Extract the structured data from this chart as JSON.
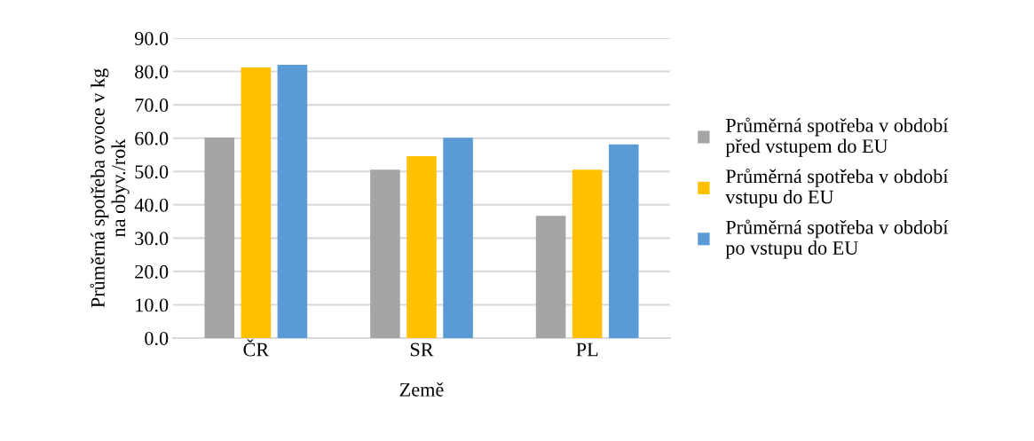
{
  "chart_data": {
    "type": "bar",
    "xlabel": "Země",
    "ylabel": "Průměrná spotřeba ovoce v kg\nna obyv./rok",
    "categories": [
      "ČR",
      "SR",
      "PL"
    ],
    "series": [
      {
        "name": "Průměrná spotřeba v období\npřed vstupem do EU",
        "color": "#a5a5a5",
        "values": [
          60.2,
          50.5,
          36.7
        ]
      },
      {
        "name": "Průměrná spotřeba v období\nvstupu do EU",
        "color": "#ffc000",
        "values": [
          81.2,
          54.6,
          50.5
        ]
      },
      {
        "name": "Průměrná spotřeba v období\npo vstupu do EU",
        "color": "#5b9bd5",
        "values": [
          82.0,
          60.1,
          58.1
        ]
      }
    ],
    "ylim": [
      0,
      90
    ],
    "yticks": [
      {
        "value": 0,
        "label": "0.0"
      },
      {
        "value": 10,
        "label": "10.0"
      },
      {
        "value": 20,
        "label": "20.0"
      },
      {
        "value": 30,
        "label": "30.0"
      },
      {
        "value": 40,
        "label": "40.0"
      },
      {
        "value": 50,
        "label": "50.0"
      },
      {
        "value": 60,
        "label": "60.0"
      },
      {
        "value": 70,
        "label": "70.0"
      },
      {
        "value": 80,
        "label": "80.0"
      },
      {
        "value": 90,
        "label": "90.0"
      }
    ],
    "grid": "y",
    "legend": "right"
  }
}
